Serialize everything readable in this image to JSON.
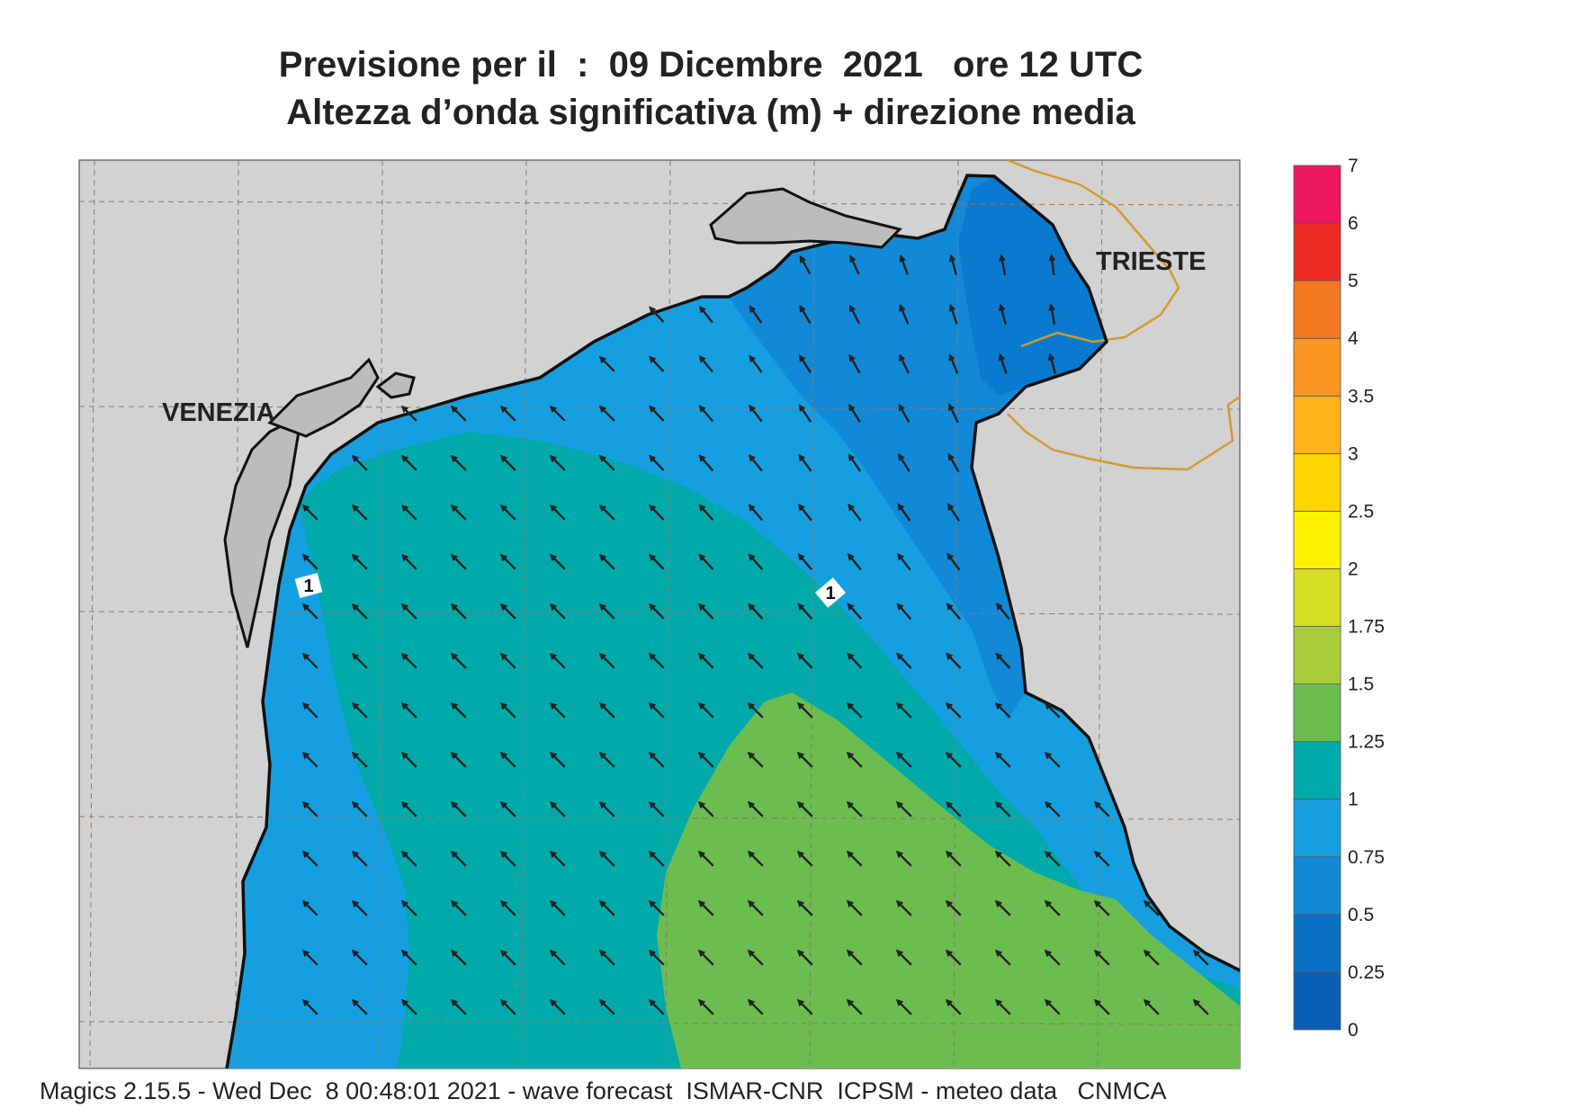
{
  "title": {
    "line1": "Previsione per il  :  09 Dicembre  2021   ore 12 UTC",
    "line2": "Altezza d’onda significativa (m) + direzione media"
  },
  "footer": "Magics 2.15.5 - Wed Dec  8 00:48:01 2021 - wave forecast  ISMAR-CNR  ICPSM - meteo data   CNMCA",
  "places": {
    "venezia": "VENEZIA",
    "trieste": "TRIESTE"
  },
  "contour_label": "1",
  "colorbar": {
    "title": "",
    "levels": [
      "0",
      "0.25",
      "0.5",
      "0.75",
      "1",
      "1.25",
      "1.5",
      "1.75",
      "2",
      "2.5",
      "3",
      "3.5",
      "4",
      "5",
      "6",
      "7"
    ],
    "colors": [
      "#0a5fb4",
      "#0a6fc2",
      "#1289d6",
      "#169fe0",
      "#00aaaa",
      "#6cbd4f",
      "#a9cc3a",
      "#d5de23",
      "#fff200",
      "#ffd500",
      "#ffb41a",
      "#f99520",
      "#f47a22",
      "#ee2a24",
      "#ee1761"
    ]
  },
  "map_colors": {
    "land": "#d2d2d3",
    "island": "#bcbcbd",
    "band_0_25": "#0a7ad0",
    "band_0_5": "#1289d6",
    "band_0_75": "#169fe0",
    "band_1": "#00aaaa",
    "band_1_25": "#6cbd4f",
    "border": "#d39a2e"
  },
  "wave_direction": "NW"
}
